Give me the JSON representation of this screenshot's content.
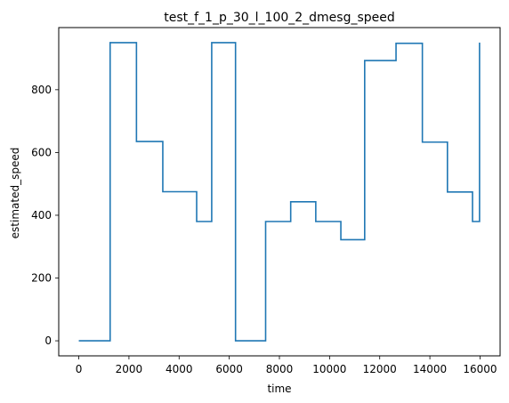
{
  "chart_data": {
    "type": "line",
    "title": "test_f_1_p_30_l_100_2_dmesg_speed",
    "xlabel": "time",
    "ylabel": "estimated_speed",
    "xlim": [
      -800,
      16800
    ],
    "ylim": [
      -48,
      998
    ],
    "xticks": [
      0,
      2000,
      4000,
      6000,
      8000,
      10000,
      12000,
      14000,
      16000
    ],
    "xtick_labels": [
      "0",
      "2000",
      "4000",
      "6000",
      "8000",
      "10000",
      "12000",
      "14000",
      "16000"
    ],
    "yticks": [
      0,
      200,
      400,
      600,
      800
    ],
    "ytick_labels": [
      "0",
      "200",
      "400",
      "600",
      "800"
    ],
    "grid": false,
    "legend": "none",
    "line_style": "steps-post",
    "series": [
      {
        "color": "#1f77b4",
        "points": [
          [
            0,
            0
          ],
          [
            1250,
            0
          ],
          [
            1250,
            950
          ],
          [
            2300,
            950
          ],
          [
            2300,
            635
          ],
          [
            3350,
            635
          ],
          [
            3350,
            475
          ],
          [
            4700,
            475
          ],
          [
            4700,
            380
          ],
          [
            5300,
            380
          ],
          [
            5300,
            950
          ],
          [
            6250,
            950
          ],
          [
            6250,
            0
          ],
          [
            7450,
            0
          ],
          [
            7450,
            380
          ],
          [
            8450,
            380
          ],
          [
            8450,
            443
          ],
          [
            9450,
            443
          ],
          [
            9450,
            380
          ],
          [
            10450,
            380
          ],
          [
            10450,
            322
          ],
          [
            11400,
            322
          ],
          [
            11400,
            893
          ],
          [
            12650,
            893
          ],
          [
            12650,
            948
          ],
          [
            13700,
            948
          ],
          [
            13700,
            633
          ],
          [
            14700,
            633
          ],
          [
            14700,
            474
          ],
          [
            15700,
            474
          ],
          [
            15700,
            380
          ],
          [
            15980,
            380
          ],
          [
            15980,
            950
          ]
        ]
      }
    ]
  }
}
